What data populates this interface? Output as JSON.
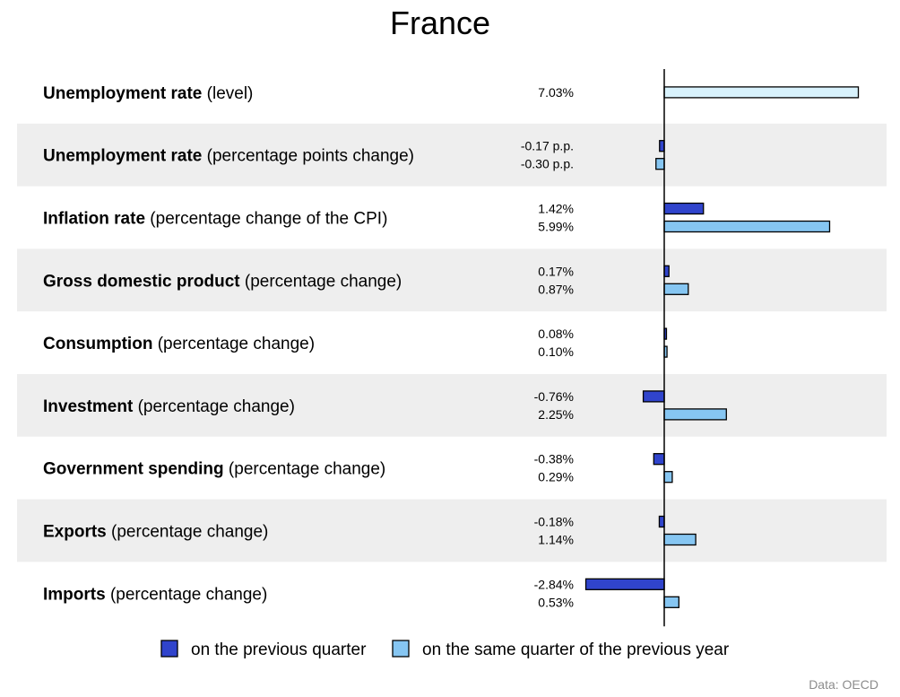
{
  "chart_data": {
    "type": "bar",
    "orientation": "horizontal",
    "title": "France",
    "categories": [
      {
        "name": "Unemployment rate",
        "suffix": "(level)"
      },
      {
        "name": "Unemployment rate",
        "suffix": "(percentage points change)"
      },
      {
        "name": "Inflation rate",
        "suffix": "(percentage change of the CPI)"
      },
      {
        "name": "Gross domestic product",
        "suffix": "(percentage change)"
      },
      {
        "name": "Consumption",
        "suffix": "(percentage change)"
      },
      {
        "name": "Investment",
        "suffix": "(percentage change)"
      },
      {
        "name": "Government spending",
        "suffix": "(percentage change)"
      },
      {
        "name": "Exports",
        "suffix": "(percentage change)"
      },
      {
        "name": "Imports",
        "suffix": "(percentage change)"
      }
    ],
    "series": [
      {
        "name": "on the previous quarter",
        "color": "#3044cc",
        "values": [
          null,
          -0.17,
          1.42,
          0.17,
          0.08,
          -0.76,
          -0.38,
          -0.18,
          -2.84
        ],
        "labels": [
          null,
          "-0.17 p.p.",
          "1.42%",
          "0.17%",
          "0.08%",
          "-0.76%",
          "-0.38%",
          "-0.18%",
          "-2.84%"
        ]
      },
      {
        "name": "on the same quarter of the previous year",
        "color": "#86c6f2",
        "values": [
          null,
          -0.3,
          5.99,
          0.87,
          0.1,
          2.25,
          0.29,
          1.14,
          0.53
        ],
        "labels": [
          null,
          "-0.30 p.p.",
          "5.99%",
          "0.87%",
          "0.10%",
          "2.25%",
          "0.29%",
          "1.14%",
          "0.53%"
        ]
      }
    ],
    "level": {
      "value": 7.03,
      "label": "7.03%",
      "color": "#d8f2fc"
    },
    "row_shading": "#eeeeee",
    "legend_position": "bottom",
    "source": "Data: OECD"
  }
}
